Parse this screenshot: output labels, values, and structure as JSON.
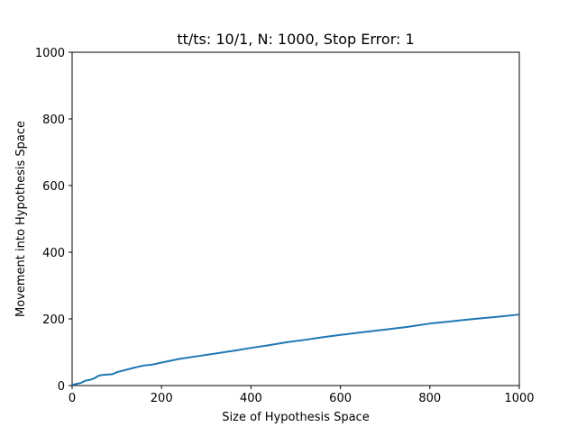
{
  "chart_data": {
    "type": "line",
    "title": "tt/ts: 10/1, N: 1000, Stop Error: 1",
    "xlabel": "Size of Hypothesis Space",
    "ylabel": "Movement into Hypothesis Space",
    "xlim": [
      0,
      1000
    ],
    "ylim": [
      0,
      1000
    ],
    "xticks": [
      0,
      200,
      400,
      600,
      800,
      1000
    ],
    "yticks": [
      0,
      200,
      400,
      600,
      800,
      1000
    ],
    "grid": false,
    "legend": "none",
    "series": [
      {
        "color": "#1f77b4",
        "x": [
          0,
          10,
          20,
          30,
          40,
          50,
          60,
          70,
          80,
          90,
          100,
          120,
          140,
          160,
          180,
          200,
          240,
          280,
          320,
          360,
          400,
          440,
          480,
          520,
          560,
          600,
          650,
          700,
          750,
          800,
          850,
          900,
          950,
          1000
        ],
        "y": [
          2,
          5,
          8,
          15,
          17,
          22,
          30,
          32,
          33,
          34,
          40,
          47,
          54,
          60,
          63,
          69,
          80,
          88,
          96,
          104,
          113,
          121,
          130,
          137,
          145,
          152,
          160,
          168,
          176,
          186,
          193,
          200,
          206,
          213
        ]
      }
    ]
  }
}
